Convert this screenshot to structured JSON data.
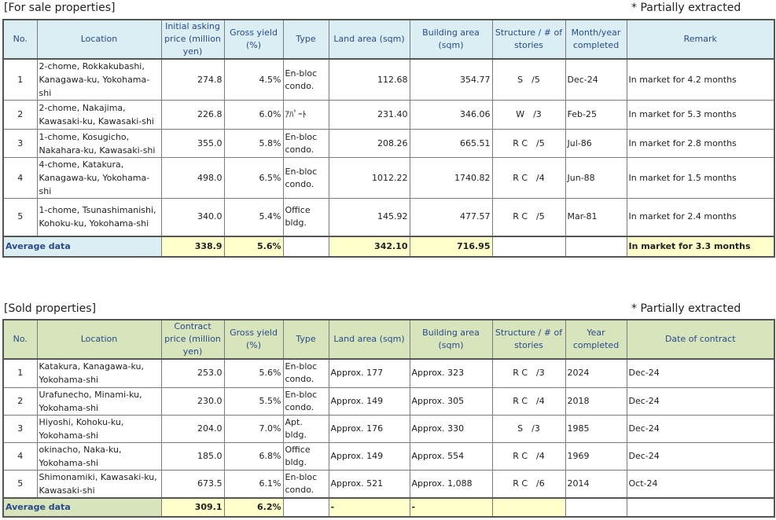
{
  "sale": {
    "caption": "[For sale properties]",
    "note": "* Partially extracted",
    "headers": [
      "No.",
      "Location",
      "Initial asking price (million yen)",
      "Gross yield (%)",
      "Type",
      "Land area (sqm)",
      "Building area (sqm)",
      "Structure / # of stories",
      "Month/year completed",
      "Remark"
    ],
    "rows": [
      {
        "no": "1",
        "location": "2-chome, Rokkakubashi, Kanagawa-ku, Yokohama-shi",
        "price": "274.8",
        "yield": "4.5%",
        "type": "En-bloc condo.",
        "land": "112.68",
        "building": "354.77",
        "structure": "S　/5",
        "completed": "Dec-24",
        "remark": "In market for 4.2 months"
      },
      {
        "no": "2",
        "location": "2-chome, Nakajima, Kawasaki-ku, Kawasaki-shi",
        "price": "226.8",
        "yield": "6.0%",
        "type": "ｱﾊﾟｰﾄ",
        "land": "231.40",
        "building": "346.06",
        "structure": "W　/3",
        "completed": "Feb-25",
        "remark": "In market for 5.3 months"
      },
      {
        "no": "3",
        "location": "1-chome, Kosugicho, Nakahara-ku, Kawasaki-shi",
        "price": "355.0",
        "yield": "5.8%",
        "type": "En-bloc condo.",
        "land": "208.26",
        "building": "665.51",
        "structure": "R C　/5",
        "completed": "Jul-86",
        "remark": "In market for 2.8 months"
      },
      {
        "no": "4",
        "location": "4-chome, Katakura, Kanagawa-ku, Yokohama-shi",
        "price": "498.0",
        "yield": "6.5%",
        "type": "En-bloc condo.",
        "land": "1012.22",
        "building": "1740.82",
        "structure": "R C　/4",
        "completed": "Jun-88",
        "remark": "In market for 1.5 months"
      },
      {
        "no": "5",
        "location": "1-chome, Tsunashimanishi, Kohoku-ku, Yokohama-shi",
        "price": "340.0",
        "yield": "5.4%",
        "type": "Office bldg.",
        "land": "145.92",
        "building": "477.57",
        "structure": "R C　/5",
        "completed": "Mar-81",
        "remark": "In market for 2.4 months"
      }
    ],
    "average": {
      "label": "Average data",
      "price": "338.9",
      "yield": "5.6%",
      "type": "",
      "land": "342.10",
      "building": "716.95",
      "structure": "",
      "completed": "",
      "remark": "In market for 3.3 months"
    }
  },
  "sold": {
    "caption": "[Sold properties]",
    "note": "* Partially extracted",
    "headers": [
      "No.",
      "Location",
      "Contract price (million yen)",
      "Gross yield (%)",
      "Type",
      "Land area (sqm)",
      "Building area (sqm)",
      "Structure / # of stories",
      "Year completed",
      "Date of contract"
    ],
    "rows": [
      {
        "no": "1",
        "location": "Katakura, Kanagawa-ku, Yokohama-shi",
        "price": "253.0",
        "yield": "5.6%",
        "type": "En-bloc condo.",
        "land": "Approx. 177",
        "building": "Approx. 323",
        "structure": "R C　/3",
        "completed": "2024",
        "remark": "Dec-24"
      },
      {
        "no": "2",
        "location": "Urafunecho, Minami-ku, Yokohama-shi",
        "price": "230.0",
        "yield": "5.5%",
        "type": "En-bloc condo.",
        "land": "Approx. 149",
        "building": "Approx. 305",
        "structure": "R C　/4",
        "completed": "2018",
        "remark": "Dec-24"
      },
      {
        "no": "3",
        "location": "Hiyoshi, Kohoku-ku, Yokohama-shi",
        "price": "204.0",
        "yield": "7.0%",
        "type": "Apt. bldg.",
        "land": "Approx. 176",
        "building": "Approx. 330",
        "structure": "S　/3",
        "completed": "1985",
        "remark": "Dec-24"
      },
      {
        "no": "4",
        "location": "okinacho, Naka-ku, Yokohama-shi",
        "price": "185.0",
        "yield": "6.8%",
        "type": "Office bldg.",
        "land": "Approx. 149",
        "building": "Approx. 554",
        "structure": "R C　/4",
        "completed": "1969",
        "remark": "Dec-24"
      },
      {
        "no": "5",
        "location": "Shimonamiki, Kawasaki-ku, Kawasaki-shi",
        "price": "673.5",
        "yield": "6.1%",
        "type": "En-bloc condo.",
        "land": "Approx. 521",
        "building": "Approx. 1,088",
        "structure": "R C　/6",
        "completed": "2014",
        "remark": "Oct-24"
      }
    ],
    "average": {
      "label": "Average data",
      "price": "309.1",
      "yield": "6.2%",
      "type": "",
      "land": "-",
      "building": "-",
      "structure": "",
      "completed": "",
      "remark": ""
    }
  }
}
